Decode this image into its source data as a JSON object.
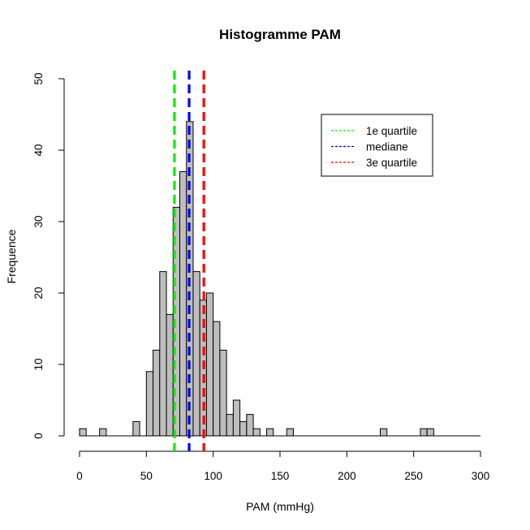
{
  "chart_data": {
    "type": "bar",
    "title": "Histogramme  PAM",
    "xlabel": "PAM (mmHg)",
    "ylabel": "Frequence",
    "xlim": [
      0,
      300
    ],
    "ylim": [
      0,
      50
    ],
    "xticks": [
      0,
      50,
      100,
      150,
      200,
      250,
      300
    ],
    "yticks": [
      0,
      10,
      20,
      30,
      40,
      50
    ],
    "bin_width": 5,
    "bar_color": "#bebebe",
    "bins": [
      {
        "x0": 0,
        "count": 1
      },
      {
        "x0": 15,
        "count": 1
      },
      {
        "x0": 40,
        "count": 2
      },
      {
        "x0": 50,
        "count": 9
      },
      {
        "x0": 55,
        "count": 12
      },
      {
        "x0": 60,
        "count": 23
      },
      {
        "x0": 65,
        "count": 17
      },
      {
        "x0": 70,
        "count": 32
      },
      {
        "x0": 75,
        "count": 37
      },
      {
        "x0": 80,
        "count": 44
      },
      {
        "x0": 85,
        "count": 23
      },
      {
        "x0": 90,
        "count": 19
      },
      {
        "x0": 95,
        "count": 20
      },
      {
        "x0": 100,
        "count": 16
      },
      {
        "x0": 105,
        "count": 12
      },
      {
        "x0": 110,
        "count": 3
      },
      {
        "x0": 115,
        "count": 5
      },
      {
        "x0": 120,
        "count": 2
      },
      {
        "x0": 125,
        "count": 3
      },
      {
        "x0": 130,
        "count": 1
      },
      {
        "x0": 140,
        "count": 1
      },
      {
        "x0": 155,
        "count": 1
      },
      {
        "x0": 225,
        "count": 1
      },
      {
        "x0": 255,
        "count": 1
      },
      {
        "x0": 260,
        "count": 1
      }
    ],
    "vlines": [
      {
        "name": "1e quartile",
        "x": 71,
        "color": "#00ee00"
      },
      {
        "name": "mediane",
        "x": 82,
        "color": "#0000ff"
      },
      {
        "name": "3e quartile",
        "x": 93,
        "color": "#ff0000"
      }
    ],
    "legend_position": "top-right"
  }
}
